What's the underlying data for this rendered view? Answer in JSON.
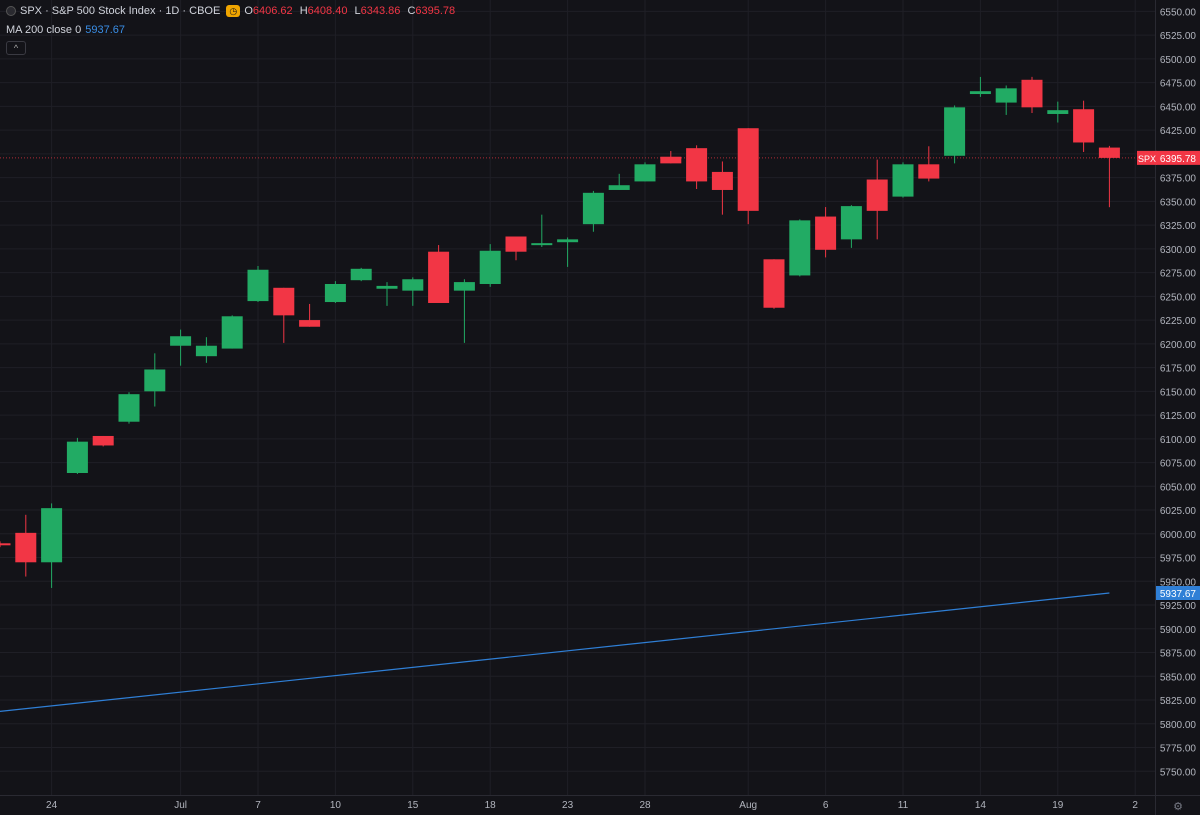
{
  "legend": {
    "title": "SPX · S&P 500 Stock Index · 1D · CBOE",
    "open_key": "O",
    "open": "6406.62",
    "high_key": "H",
    "high": "6408.40",
    "low_key": "L",
    "low": "6343.86",
    "close_key": "C",
    "close": "6395.78",
    "ma_label": "MA 200 close 0",
    "ma_value": "5937.67",
    "collapse": "^"
  },
  "chart_data": {
    "type": "candlestick",
    "symbol_tag": "SPX",
    "last_price_label": "6395.78",
    "ma_price_label": "5937.67",
    "colors": {
      "up": "#22ab64",
      "down": "#f23645",
      "ma": "#2f7fd6",
      "background": "#131318",
      "grid": "#1f1f26"
    },
    "ylim": [
      5725,
      6562
    ],
    "yticks": [
      "5750.00",
      "5775.00",
      "5800.00",
      "5825.00",
      "5850.00",
      "5875.00",
      "5900.00",
      "5925.00",
      "5950.00",
      "5975.00",
      "6000.00",
      "6025.00",
      "6050.00",
      "6075.00",
      "6100.00",
      "6125.00",
      "6150.00",
      "6175.00",
      "6200.00",
      "6225.00",
      "6250.00",
      "6275.00",
      "6300.00",
      "6325.00",
      "6350.00",
      "6375.00",
      "6400.00",
      "6425.00",
      "6450.00",
      "6475.00",
      "6500.00",
      "6525.00",
      "6550.00"
    ],
    "x_labels": [
      {
        "i": 2,
        "label": "24"
      },
      {
        "i": 7,
        "label": "Jul"
      },
      {
        "i": 10,
        "label": "7"
      },
      {
        "i": 13,
        "label": "10"
      },
      {
        "i": 16,
        "label": "15"
      },
      {
        "i": 19,
        "label": "18"
      },
      {
        "i": 22,
        "label": "23"
      },
      {
        "i": 25,
        "label": "28"
      },
      {
        "i": 29,
        "label": "Aug"
      },
      {
        "i": 32,
        "label": "6"
      },
      {
        "i": 35,
        "label": "11"
      },
      {
        "i": 38,
        "label": "14"
      },
      {
        "i": 41,
        "label": "19"
      },
      {
        "i": 44,
        "label": "2"
      }
    ],
    "candles": [
      {
        "o": 5990,
        "h": 5992,
        "l": 5986,
        "c": 5988
      },
      {
        "o": 6001,
        "h": 6020,
        "l": 5955,
        "c": 5970
      },
      {
        "o": 5970,
        "h": 6032,
        "l": 5943,
        "c": 6027
      },
      {
        "o": 6064,
        "h": 6101,
        "l": 6063,
        "c": 6097
      },
      {
        "o": 6103,
        "h": 6103,
        "l": 6092,
        "c": 6093
      },
      {
        "o": 6118,
        "h": 6149,
        "l": 6116,
        "c": 6147
      },
      {
        "o": 6150,
        "h": 6190,
        "l": 6134,
        "c": 6173
      },
      {
        "o": 6198,
        "h": 6215,
        "l": 6177,
        "c": 6208
      },
      {
        "o": 6187,
        "h": 6207,
        "l": 6180,
        "c": 6198
      },
      {
        "o": 6195,
        "h": 6230,
        "l": 6195,
        "c": 6229
      },
      {
        "o": 6245,
        "h": 6282,
        "l": 6244,
        "c": 6278
      },
      {
        "o": 6259,
        "h": 6259,
        "l": 6201,
        "c": 6230
      },
      {
        "o": 6225,
        "h": 6242,
        "l": 6218,
        "c": 6218
      },
      {
        "o": 6244,
        "h": 6266,
        "l": 6243,
        "c": 6263
      },
      {
        "o": 6267,
        "h": 6280,
        "l": 6266,
        "c": 6279
      },
      {
        "o": 6258,
        "h": 6265,
        "l": 6240,
        "c": 6261
      },
      {
        "o": 6256,
        "h": 6270,
        "l": 6240,
        "c": 6268
      },
      {
        "o": 6297,
        "h": 6304,
        "l": 6244,
        "c": 6243
      },
      {
        "o": 6256,
        "h": 6268,
        "l": 6201,
        "c": 6265
      },
      {
        "o": 6263,
        "h": 6305,
        "l": 6260,
        "c": 6298
      },
      {
        "o": 6313,
        "h": 6313,
        "l": 6288,
        "c": 6297
      },
      {
        "o": 6305,
        "h": 6336,
        "l": 6302,
        "c": 6306
      },
      {
        "o": 6307,
        "h": 6312,
        "l": 6281,
        "c": 6310
      },
      {
        "o": 6326,
        "h": 6361,
        "l": 6318,
        "c": 6359
      },
      {
        "o": 6362,
        "h": 6379,
        "l": 6362,
        "c": 6367
      },
      {
        "o": 6371,
        "h": 6391,
        "l": 6371,
        "c": 6389
      },
      {
        "o": 6397,
        "h": 6403,
        "l": 6390,
        "c": 6390
      },
      {
        "o": 6406,
        "h": 6409,
        "l": 6363,
        "c": 6371
      },
      {
        "o": 6381,
        "h": 6392,
        "l": 6336,
        "c": 6362
      },
      {
        "o": 6427,
        "h": 6427,
        "l": 6326,
        "c": 6340
      },
      {
        "o": 6289,
        "h": 6289,
        "l": 6237,
        "c": 6238
      },
      {
        "o": 6272,
        "h": 6331,
        "l": 6271,
        "c": 6330
      },
      {
        "o": 6334,
        "h": 6344,
        "l": 6291,
        "c": 6299
      },
      {
        "o": 6310,
        "h": 6346,
        "l": 6301,
        "c": 6345
      },
      {
        "o": 6373,
        "h": 6394,
        "l": 6310,
        "c": 6340
      },
      {
        "o": 6355,
        "h": 6391,
        "l": 6354,
        "c": 6389
      },
      {
        "o": 6389,
        "h": 6408,
        "l": 6371,
        "c": 6374
      },
      {
        "o": 6398,
        "h": 6451,
        "l": 6390,
        "c": 6449
      },
      {
        "o": 6463,
        "h": 6481,
        "l": 6460,
        "c": 6466
      },
      {
        "o": 6454,
        "h": 6472,
        "l": 6441,
        "c": 6469
      },
      {
        "o": 6478,
        "h": 6481,
        "l": 6443,
        "c": 6449
      },
      {
        "o": 6442,
        "h": 6455,
        "l": 6433,
        "c": 6446
      },
      {
        "o": 6447,
        "h": 6456,
        "l": 6402,
        "c": 6412
      },
      {
        "o": 6406.62,
        "h": 6408.4,
        "l": 6343.86,
        "c": 6395.78
      }
    ],
    "ma_start": 5813,
    "ma_end": 5937.67
  }
}
